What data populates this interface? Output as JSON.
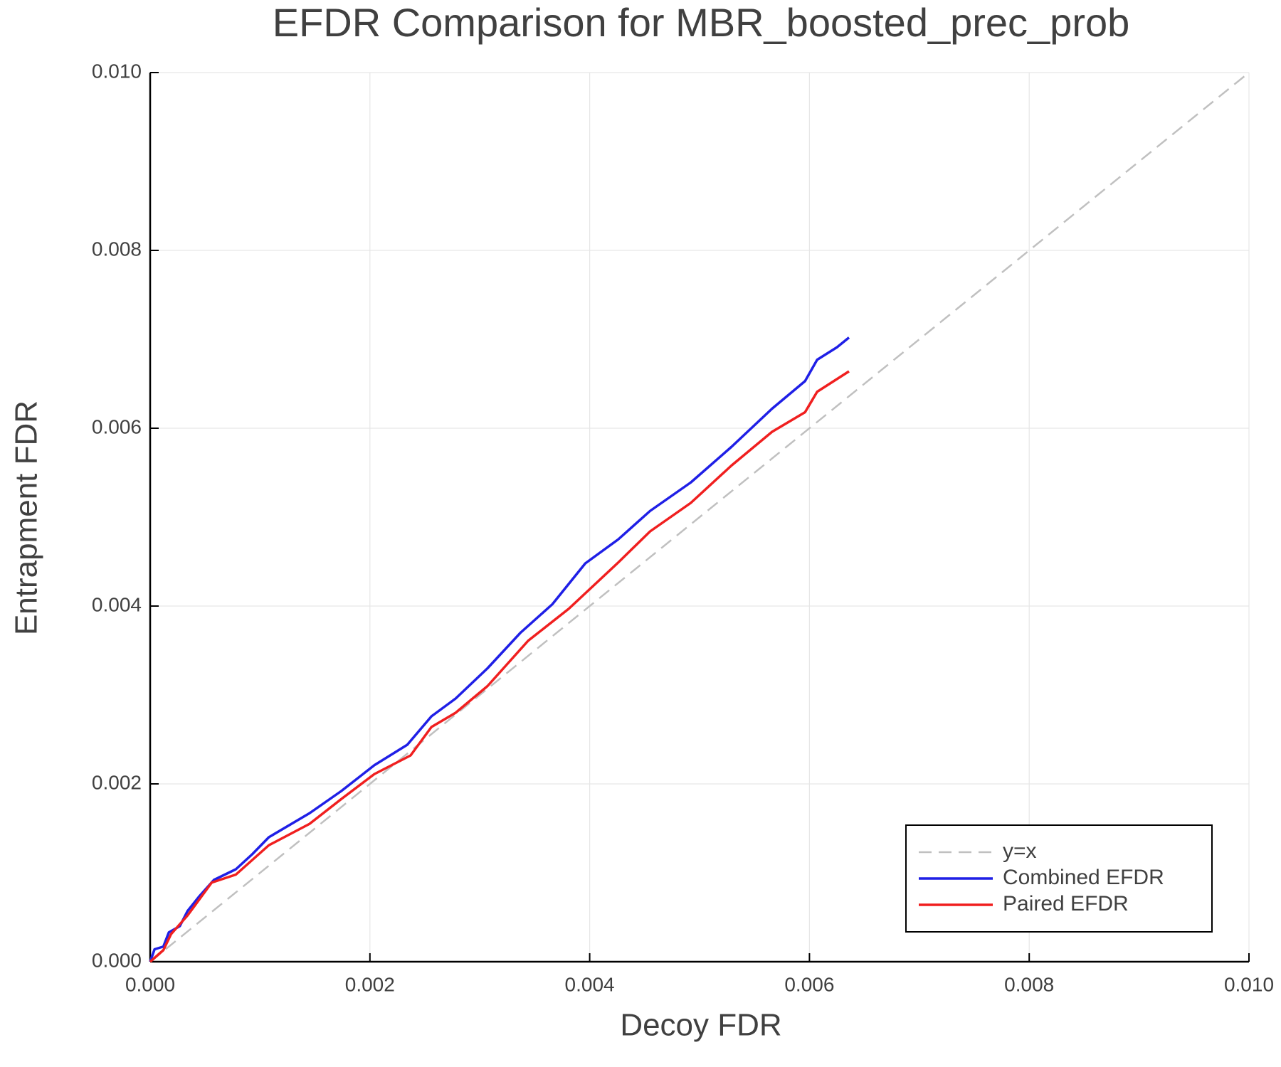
{
  "chart_data": {
    "type": "line",
    "title": "EFDR Comparison for MBR_boosted_prec_prob",
    "x_label": "Decoy FDR",
    "y_label": "Entrapment FDR",
    "xlim": [
      0,
      0.01
    ],
    "ylim": [
      0,
      0.01
    ],
    "xticks": [
      {
        "value": 0,
        "label": "0.000"
      },
      0.002,
      0.004,
      0.006,
      0.008,
      {
        "value": 0.01,
        "label": "0.010"
      }
    ],
    "yticks": [
      {
        "value": 0,
        "label": "0.000"
      },
      0.002,
      0.004,
      0.006,
      0.008,
      {
        "value": 0.01,
        "label": "0.010"
      }
    ],
    "grid": true,
    "legend": "bottom right",
    "series": [
      {
        "name": "y=x",
        "color": "#c0c0c0",
        "dash": true,
        "x": [
          0,
          0.01
        ],
        "values": [
          0,
          0.01
        ]
      },
      {
        "name": "Combined EFDR",
        "color": "#1f1fe6",
        "dash": false,
        "x": [
          0,
          4e-05,
          0.00012,
          0.00017,
          0.00027,
          0.00034,
          0.00045,
          0.00058,
          0.00078,
          0.00093,
          0.00108,
          0.00145,
          0.00174,
          0.00204,
          0.00234,
          0.00256,
          0.00278,
          0.00307,
          0.00337,
          0.00366,
          0.00396,
          0.00426,
          0.00455,
          0.00492,
          0.00529,
          0.00566,
          0.00596,
          0.00607,
          0.00625,
          0.00636
        ],
        "values": [
          0,
          0.00014,
          0.00017,
          0.00033,
          0.0004,
          0.00057,
          0.00074,
          0.00092,
          0.00104,
          0.00121,
          0.0014,
          0.00167,
          0.00192,
          0.00221,
          0.00244,
          0.00276,
          0.00296,
          0.0033,
          0.0037,
          0.00402,
          0.00448,
          0.00475,
          0.00507,
          0.00539,
          0.00579,
          0.00622,
          0.00653,
          0.00677,
          0.00691,
          0.00702
        ]
      },
      {
        "name": "Paired EFDR",
        "color": "#f01f1f",
        "dash": false,
        "x": [
          0,
          0.00012,
          0.00019,
          0.00034,
          0.00056,
          0.00078,
          0.00108,
          0.00145,
          0.00174,
          0.00204,
          0.00237,
          0.00256,
          0.00278,
          0.00307,
          0.00344,
          0.00381,
          0.00426,
          0.00455,
          0.00492,
          0.00529,
          0.00566,
          0.00596,
          0.00607,
          0.00636
        ],
        "values": [
          0,
          0.00013,
          0.00031,
          0.00052,
          0.00089,
          0.00098,
          0.00131,
          0.00155,
          0.00183,
          0.00211,
          0.00232,
          0.00264,
          0.0028,
          0.0031,
          0.00361,
          0.00397,
          0.00449,
          0.00484,
          0.00516,
          0.00558,
          0.00596,
          0.00618,
          0.00641,
          0.00664
        ]
      }
    ]
  }
}
